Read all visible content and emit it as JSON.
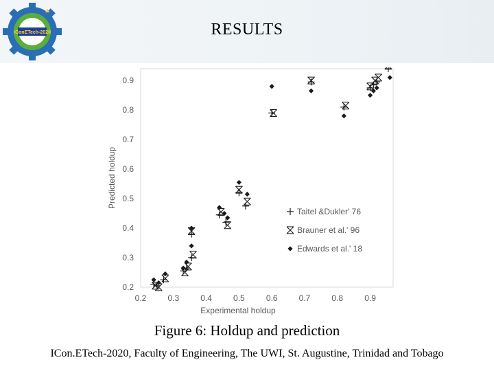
{
  "slide": {
    "title": "RESULTS",
    "caption": "Figure 6: Holdup and prediction",
    "footer": "ICon.ETech-2020, Faculty of Engineering, The UWI, St. Augustine, Trinidad and Tobago",
    "logo_text": "IConETech-2020"
  },
  "colors": {
    "accent_blue": "#2a6fb5",
    "accent_green": "#5cae3c",
    "marker": "#1a1a1a",
    "axis_text": "#595959"
  },
  "chart_data": {
    "type": "scatter",
    "xlabel": "Experimental holdup",
    "ylabel": "Predicted holdup",
    "xlim": [
      0.2,
      0.97
    ],
    "ylim": [
      0.2,
      0.94
    ],
    "x_ticks": [
      "0.2",
      "0.3",
      "0.4",
      "0.5",
      "0.6",
      "0.7",
      "0.8",
      "0.9"
    ],
    "y_ticks": [
      "0.2",
      "0.3",
      "0.4",
      "0.5",
      "0.6",
      "0.7",
      "0.8",
      "0.9"
    ],
    "legend_position": "middle-right",
    "grid": false,
    "series": [
      {
        "name": "Taitel &Dukler' 76",
        "marker": "plus",
        "points": [
          [
            0.24,
            0.21
          ],
          [
            0.25,
            0.205
          ],
          [
            0.27,
            0.225
          ],
          [
            0.33,
            0.255
          ],
          [
            0.34,
            0.265
          ],
          [
            0.355,
            0.3
          ],
          [
            0.355,
            0.38
          ],
          [
            0.44,
            0.445
          ],
          [
            0.46,
            0.42
          ],
          [
            0.5,
            0.52
          ],
          [
            0.52,
            0.475
          ],
          [
            0.6,
            0.79
          ],
          [
            0.72,
            0.895
          ],
          [
            0.82,
            0.81
          ],
          [
            0.9,
            0.875
          ],
          [
            0.91,
            0.885
          ],
          [
            0.92,
            0.895
          ],
          [
            0.955,
            0.94
          ]
        ]
      },
      {
        "name": "Brauner et al.' 96",
        "marker": "asterisk",
        "points": [
          [
            0.245,
            0.205
          ],
          [
            0.255,
            0.2
          ],
          [
            0.275,
            0.23
          ],
          [
            0.335,
            0.25
          ],
          [
            0.345,
            0.27
          ],
          [
            0.36,
            0.31
          ],
          [
            0.355,
            0.39
          ],
          [
            0.445,
            0.455
          ],
          [
            0.465,
            0.41
          ],
          [
            0.5,
            0.53
          ],
          [
            0.525,
            0.49
          ],
          [
            0.605,
            0.79
          ],
          [
            0.72,
            0.9
          ],
          [
            0.825,
            0.815
          ],
          [
            0.9,
            0.88
          ],
          [
            0.915,
            0.9
          ],
          [
            0.925,
            0.91
          ],
          [
            0.955,
            0.95
          ]
        ]
      },
      {
        "name": "Edwards et al.' 18",
        "marker": "diamond",
        "points": [
          [
            0.24,
            0.225
          ],
          [
            0.255,
            0.215
          ],
          [
            0.275,
            0.245
          ],
          [
            0.33,
            0.265
          ],
          [
            0.34,
            0.285
          ],
          [
            0.355,
            0.34
          ],
          [
            0.355,
            0.4
          ],
          [
            0.44,
            0.47
          ],
          [
            0.455,
            0.45
          ],
          [
            0.465,
            0.435
          ],
          [
            0.5,
            0.555
          ],
          [
            0.525,
            0.515
          ],
          [
            0.6,
            0.88
          ],
          [
            0.72,
            0.865
          ],
          [
            0.82,
            0.78
          ],
          [
            0.9,
            0.85
          ],
          [
            0.91,
            0.865
          ],
          [
            0.92,
            0.875
          ],
          [
            0.96,
            0.91
          ]
        ]
      }
    ]
  }
}
